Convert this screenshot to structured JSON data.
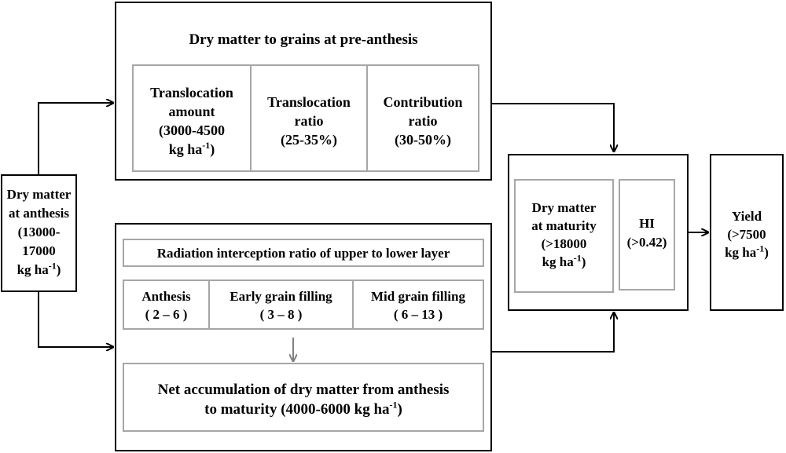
{
  "pre_anthesis": {
    "title": "Dry matter to grains at pre-anthesis",
    "amount_l1": "Translocation",
    "amount_l2": "amount",
    "amount_l3": "(3000-4500",
    "amount_l4": "kg ha",
    "amount_sup": "-1",
    "amount_close": ")",
    "ratio_l1": "Translocation",
    "ratio_l2": "ratio",
    "ratio_l3": "(25-35%)",
    "contrib_l1": "Contribution",
    "contrib_l2": "ratio",
    "contrib_l3": "(30-50%)"
  },
  "anthesis": {
    "l1": "Dry matter",
    "l2": "at anthesis",
    "l3": "(13000-",
    "l4": "17000",
    "l5": "kg ha",
    "sup": "-1",
    "close": ")"
  },
  "post_anthesis": {
    "radiation_title": "Radiation interception ratio of upper to lower layer",
    "stage1_name": "Anthesis",
    "stage1_range": "( 2 – 6 )",
    "stage2_name": "Early grain filling",
    "stage2_range": "( 3 – 8 )",
    "stage3_name": "Mid grain filling",
    "stage3_range": "( 6 – 13 )",
    "net_l1": "Net accumulation of dry matter from anthesis",
    "net_l2": "to maturity (4000-6000 kg ha",
    "net_sup": "-1",
    "net_close": ")"
  },
  "maturity": {
    "l1": "Dry matter",
    "l2": "at maturity",
    "l3": "(>18000",
    "l4": "kg ha",
    "sup": "-1",
    "close": ")"
  },
  "hi": {
    "l1": "HI",
    "l2": "(>0.42)"
  },
  "yield": {
    "l1": "Yield",
    "l2": "(>7500",
    "l3": "kg ha",
    "sup": "-1",
    "close": ")"
  },
  "colors": {
    "outer_border": "#000000",
    "inner_border": "#a6a6a6",
    "arrow_main": "#000000",
    "arrow_inner": "#808080"
  }
}
